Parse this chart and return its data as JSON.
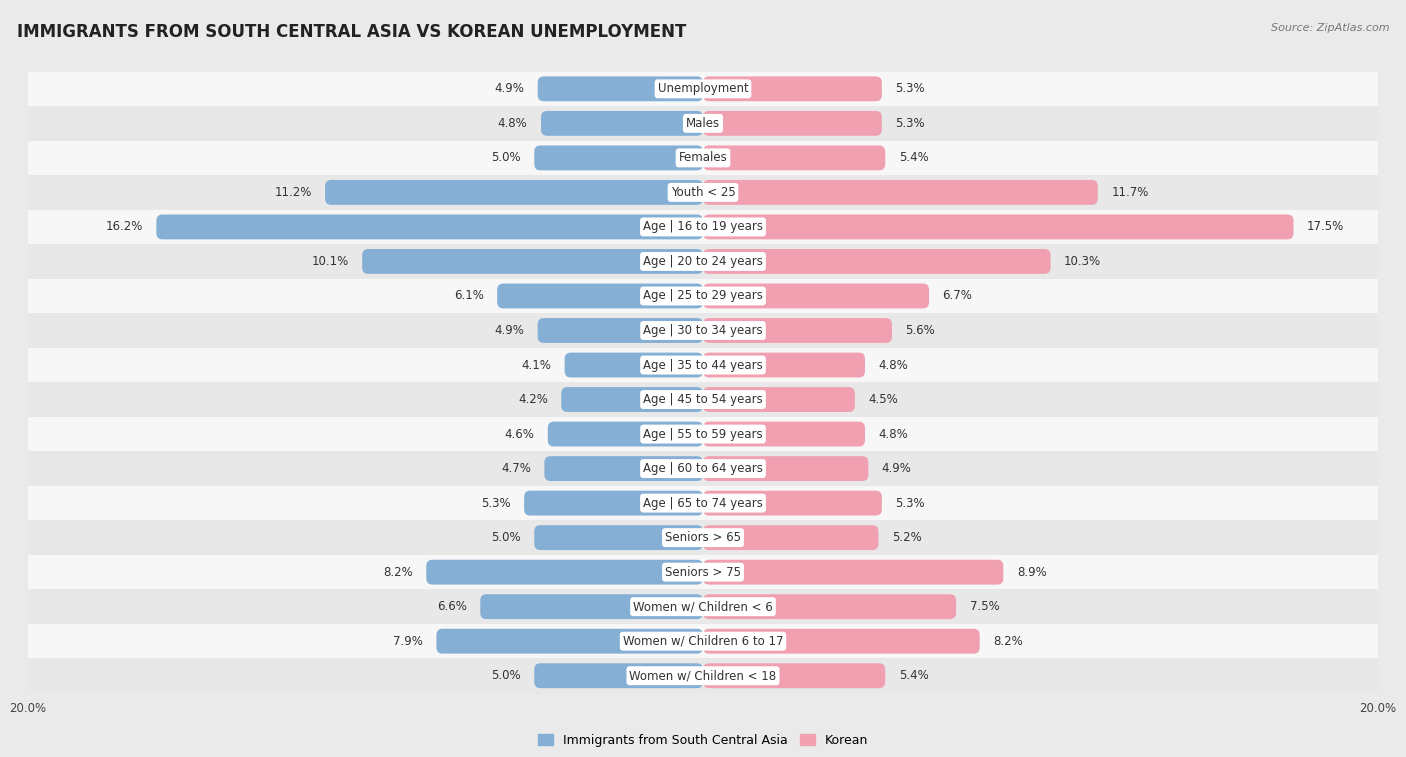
{
  "title": "IMMIGRANTS FROM SOUTH CENTRAL ASIA VS KOREAN UNEMPLOYMENT",
  "source": "Source: ZipAtlas.com",
  "categories": [
    "Unemployment",
    "Males",
    "Females",
    "Youth < 25",
    "Age | 16 to 19 years",
    "Age | 20 to 24 years",
    "Age | 25 to 29 years",
    "Age | 30 to 34 years",
    "Age | 35 to 44 years",
    "Age | 45 to 54 years",
    "Age | 55 to 59 years",
    "Age | 60 to 64 years",
    "Age | 65 to 74 years",
    "Seniors > 65",
    "Seniors > 75",
    "Women w/ Children < 6",
    "Women w/ Children 6 to 17",
    "Women w/ Children < 18"
  ],
  "left_values": [
    4.9,
    4.8,
    5.0,
    11.2,
    16.2,
    10.1,
    6.1,
    4.9,
    4.1,
    4.2,
    4.6,
    4.7,
    5.3,
    5.0,
    8.2,
    6.6,
    7.9,
    5.0
  ],
  "right_values": [
    5.3,
    5.3,
    5.4,
    11.7,
    17.5,
    10.3,
    6.7,
    5.6,
    4.8,
    4.5,
    4.8,
    4.9,
    5.3,
    5.2,
    8.9,
    7.5,
    8.2,
    5.4
  ],
  "left_color": "#85afd4",
  "right_color": "#f0a0b0",
  "highlight_left_color": "#5a9ac8",
  "highlight_right_color": "#e8607a",
  "left_label": "Immigrants from South Central Asia",
  "right_label": "Korean",
  "xlim": 20.0,
  "bg_color": "#eaeaea",
  "row_color_even": "#f7f7f7",
  "row_color_odd": "#e8e8e8",
  "title_fontsize": 12,
  "label_fontsize": 8.5,
  "value_fontsize": 8.5,
  "legend_fontsize": 9,
  "source_fontsize": 8
}
